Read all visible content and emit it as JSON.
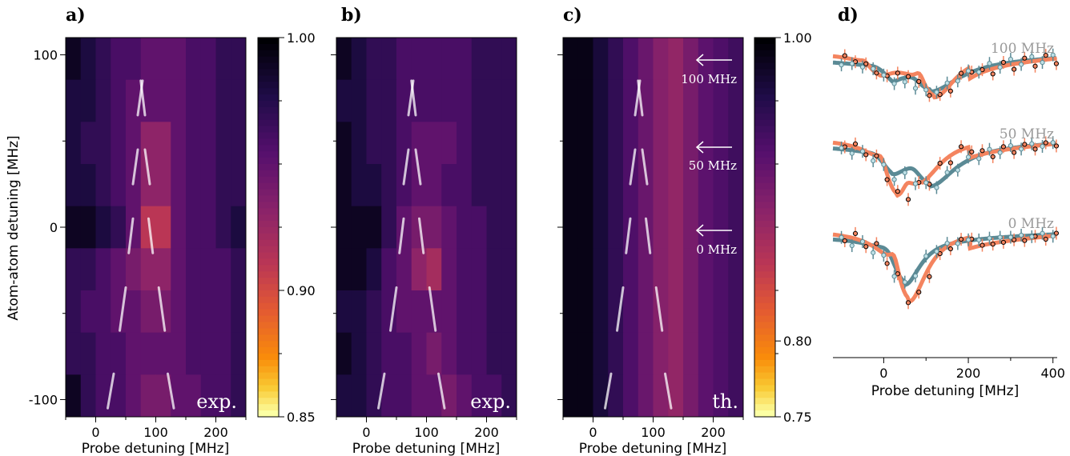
{
  "panels": {
    "a": {
      "letter": "a)",
      "tag": "exp."
    },
    "b": {
      "letter": "b)",
      "tag": "exp."
    },
    "c": {
      "letter": "c)",
      "tag": "th."
    },
    "d": {
      "letter": "d)"
    }
  },
  "xlabel": "Probe detuning [MHz]",
  "ylabel": "Atom-atom detuning [MHz]",
  "heatmap_xticks": [
    "0",
    "100",
    "200"
  ],
  "heatmap_yticks": [
    "100",
    "0",
    "-100"
  ],
  "colorbar_a": {
    "ticks": [
      "1.00",
      "0.90",
      "0.85"
    ],
    "range": [
      0.85,
      1.0
    ]
  },
  "colorbar_c": {
    "ticks": [
      "1.00",
      "0.80",
      "0.75"
    ],
    "range": [
      0.75,
      1.0
    ]
  },
  "arrow_labels": [
    "100 MHz",
    "50 MHz",
    "0 MHz"
  ],
  "d_xticks": [
    "0",
    "200",
    "400"
  ],
  "d_trace_labels": [
    "100 MHz",
    "50 MHz",
    "0 MHz"
  ],
  "colors": {
    "orange": "#f4845f",
    "teal": "#5b8a95",
    "label_gray": "#999999"
  },
  "chart_data": [
    {
      "type": "heatmap",
      "panel": "a",
      "x_range": [
        -50,
        250
      ],
      "y_range": [
        -110,
        110
      ],
      "z_range": [
        0.85,
        1.0
      ],
      "x_bins": [
        -50,
        -25,
        0,
        25,
        50,
        75,
        100,
        125,
        150,
        175,
        200,
        225,
        250
      ],
      "rows_top_to_bottom": [
        [
          0.99,
          0.98,
          0.97,
          0.96,
          0.96,
          0.95,
          0.95,
          0.95,
          0.96,
          0.96,
          0.97,
          0.97
        ],
        [
          0.98,
          0.98,
          0.97,
          0.96,
          0.95,
          0.95,
          0.95,
          0.95,
          0.96,
          0.96,
          0.97,
          0.97
        ],
        [
          0.98,
          0.97,
          0.97,
          0.96,
          0.95,
          0.93,
          0.93,
          0.95,
          0.96,
          0.96,
          0.97,
          0.97
        ],
        [
          0.98,
          0.98,
          0.97,
          0.96,
          0.95,
          0.93,
          0.93,
          0.95,
          0.96,
          0.96,
          0.97,
          0.97
        ],
        [
          0.99,
          0.99,
          0.98,
          0.97,
          0.95,
          0.91,
          0.91,
          0.95,
          0.96,
          0.96,
          0.97,
          0.98
        ],
        [
          0.97,
          0.97,
          0.96,
          0.95,
          0.94,
          0.93,
          0.93,
          0.95,
          0.96,
          0.96,
          0.96,
          0.97
        ],
        [
          0.97,
          0.96,
          0.96,
          0.95,
          0.95,
          0.94,
          0.94,
          0.95,
          0.96,
          0.96,
          0.96,
          0.97
        ],
        [
          0.97,
          0.97,
          0.96,
          0.96,
          0.95,
          0.95,
          0.95,
          0.95,
          0.96,
          0.96,
          0.96,
          0.97
        ],
        [
          0.99,
          0.97,
          0.96,
          0.96,
          0.95,
          0.94,
          0.94,
          0.95,
          0.95,
          0.96,
          0.96,
          0.97
        ]
      ]
    },
    {
      "type": "heatmap",
      "panel": "b",
      "x_range": [
        -50,
        250
      ],
      "y_range": [
        -110,
        110
      ],
      "z_range": [
        0.85,
        1.0
      ],
      "x_bins": [
        -50,
        -25,
        0,
        25,
        50,
        75,
        100,
        125,
        150,
        175,
        200,
        225,
        250
      ],
      "rows_top_to_bottom": [
        [
          0.99,
          0.98,
          0.97,
          0.97,
          0.96,
          0.96,
          0.96,
          0.96,
          0.96,
          0.97,
          0.97,
          0.97
        ],
        [
          0.98,
          0.98,
          0.97,
          0.97,
          0.96,
          0.96,
          0.96,
          0.96,
          0.96,
          0.97,
          0.97,
          0.97
        ],
        [
          0.99,
          0.98,
          0.97,
          0.97,
          0.96,
          0.95,
          0.95,
          0.95,
          0.96,
          0.97,
          0.97,
          0.97
        ],
        [
          0.99,
          0.98,
          0.98,
          0.97,
          0.96,
          0.95,
          0.95,
          0.96,
          0.96,
          0.97,
          0.97,
          0.97
        ],
        [
          0.99,
          0.99,
          0.99,
          0.97,
          0.95,
          0.94,
          0.94,
          0.95,
          0.96,
          0.96,
          0.97,
          0.97
        ],
        [
          0.99,
          0.99,
          0.98,
          0.96,
          0.95,
          0.93,
          0.92,
          0.95,
          0.96,
          0.96,
          0.97,
          0.97
        ],
        [
          0.98,
          0.98,
          0.97,
          0.96,
          0.95,
          0.95,
          0.95,
          0.95,
          0.96,
          0.96,
          0.97,
          0.97
        ],
        [
          0.99,
          0.98,
          0.97,
          0.96,
          0.96,
          0.95,
          0.94,
          0.95,
          0.96,
          0.96,
          0.97,
          0.97
        ],
        [
          0.98,
          0.98,
          0.97,
          0.96,
          0.96,
          0.95,
          0.95,
          0.94,
          0.95,
          0.96,
          0.96,
          0.97
        ]
      ]
    },
    {
      "type": "heatmap",
      "panel": "c",
      "x_range": [
        -50,
        250
      ],
      "y_range": [
        -110,
        110
      ],
      "z_range": [
        0.75,
        1.0
      ],
      "x_bins": [
        -50,
        -25,
        0,
        25,
        50,
        75,
        100,
        125,
        150,
        175,
        200,
        225,
        250
      ],
      "column_profile": [
        0.99,
        0.99,
        0.97,
        0.95,
        0.93,
        0.91,
        0.89,
        0.88,
        0.9,
        0.92,
        0.93,
        0.94
      ]
    },
    {
      "type": "scatter",
      "panel": "d",
      "x_range": [
        -120,
        410
      ],
      "xlabel": "Probe detuning [MHz]",
      "series": [
        {
          "name": "100 MHz",
          "offset": 2.0
        },
        {
          "name": "50 MHz",
          "offset": 1.0
        },
        {
          "name": "0 MHz",
          "offset": 0.0
        }
      ],
      "markers_orange_100": [
        [
          -80,
          1.92
        ],
        [
          -55,
          1.98
        ],
        [
          -30,
          2.06
        ],
        [
          -10,
          1.97
        ],
        [
          20,
          1.65
        ],
        [
          40,
          1.58
        ],
        [
          55,
          1.6
        ],
        [
          75,
          1.5
        ],
        [
          100,
          1.32
        ],
        [
          130,
          1.37
        ],
        [
          160,
          1.45
        ],
        [
          200,
          1.58
        ],
        [
          240,
          1.66
        ],
        [
          280,
          1.72
        ],
        [
          320,
          1.78
        ],
        [
          400,
          1.84
        ]
      ],
      "markers_teal_100": [
        [
          -80,
          1.96
        ],
        [
          -30,
          2.0
        ],
        [
          10,
          1.75
        ],
        [
          20,
          1.67
        ],
        [
          60,
          1.64
        ],
        [
          80,
          1.58
        ],
        [
          100,
          1.55
        ],
        [
          130,
          1.5
        ],
        [
          150,
          1.58
        ],
        [
          180,
          1.65
        ],
        [
          210,
          1.75
        ],
        [
          260,
          1.82
        ],
        [
          310,
          1.85
        ],
        [
          360,
          1.88
        ]
      ]
    }
  ]
}
